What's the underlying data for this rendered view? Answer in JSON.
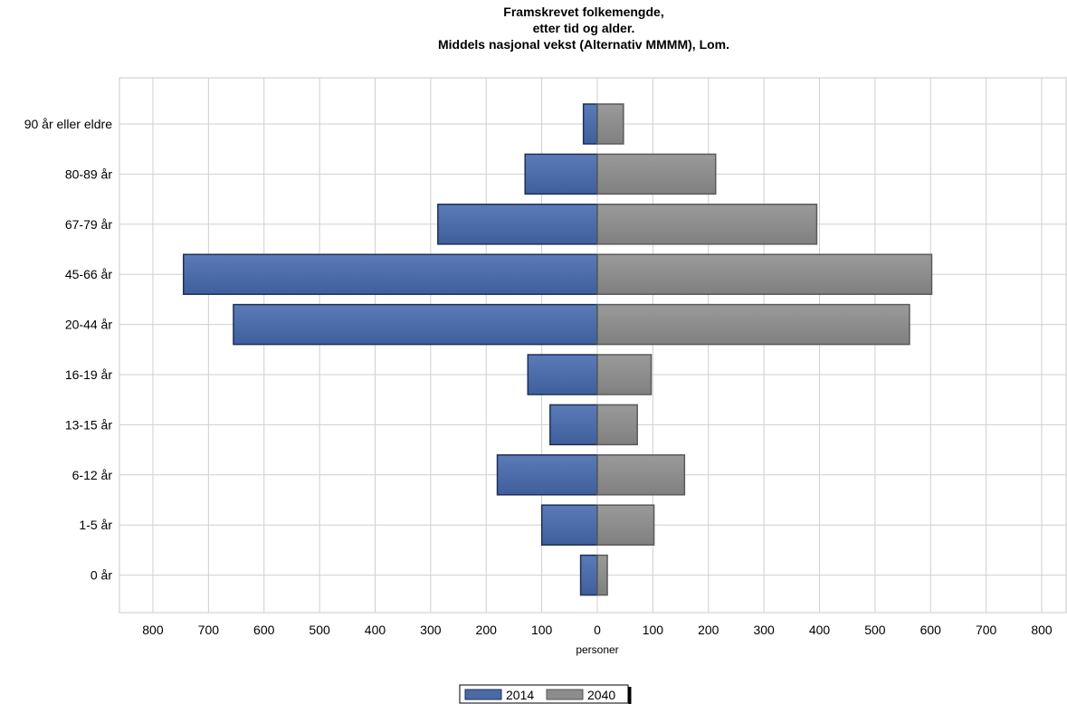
{
  "chart_data": {
    "type": "bar",
    "orientation": "horizontal-population-pyramid",
    "title_lines": [
      "Framskrevet folkemengde,",
      "etter tid og alder.",
      "Middels nasjonal vekst (Alternativ MMMM), Lom."
    ],
    "xlabel": "personer",
    "ylabel": "",
    "xlim": [
      -800,
      800
    ],
    "x_ticks": [
      800,
      700,
      600,
      500,
      400,
      300,
      200,
      100,
      0,
      100,
      200,
      300,
      400,
      500,
      600,
      700,
      800
    ],
    "grid": true,
    "legend_position": "bottom-center",
    "categories": [
      "90 år eller eldre",
      "80-89 år",
      "67-79 år",
      "45-66 år",
      "20-44 år",
      "16-19 år",
      "13-15 år",
      "6-12 år",
      "1-5 år",
      "0 år"
    ],
    "series": [
      {
        "name": "2014",
        "side": "left",
        "color": "#4a6aa5",
        "values": [
          25,
          130,
          287,
          745,
          655,
          125,
          85,
          180,
          100,
          30
        ]
      },
      {
        "name": "2040",
        "side": "right",
        "color": "#8c8c8c",
        "values": [
          47,
          213,
          395,
          602,
          562,
          97,
          72,
          157,
          102,
          18
        ]
      }
    ]
  }
}
